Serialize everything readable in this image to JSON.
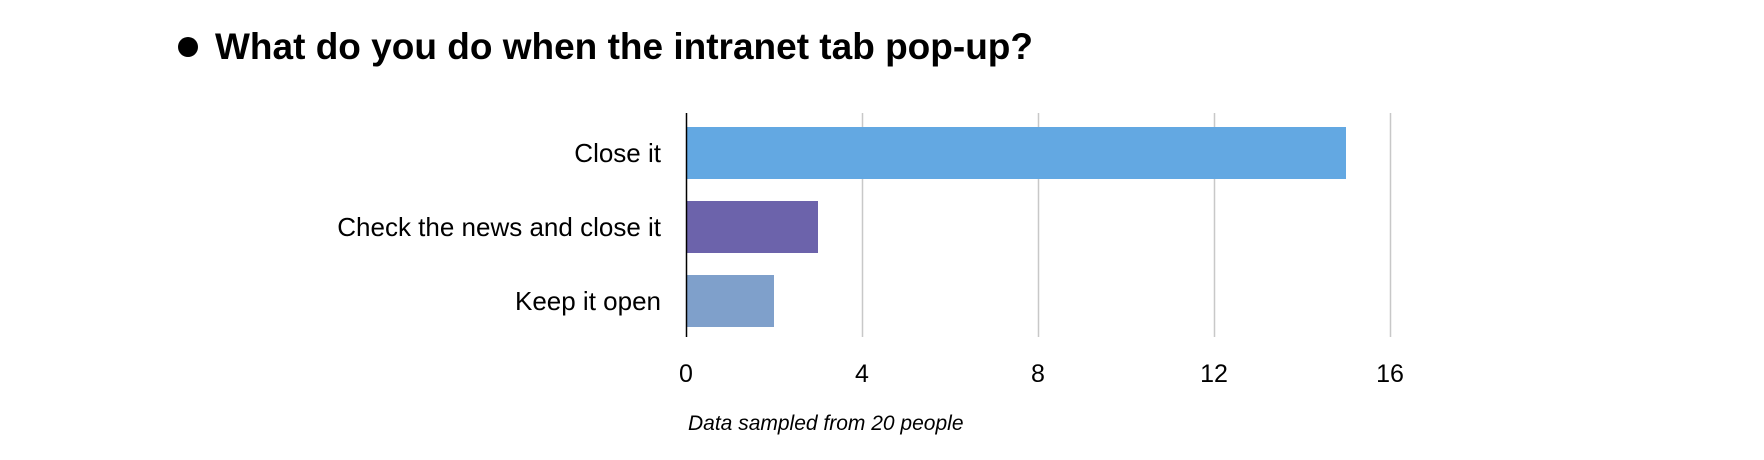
{
  "slide": {
    "title": "What do you do when the intranet tab pop-up?"
  },
  "chart_data": {
    "type": "bar",
    "orientation": "horizontal",
    "categories": [
      "Close it",
      "Check the news and close it",
      "Keep it open"
    ],
    "values": [
      15,
      3,
      2
    ],
    "colors": [
      "#63a8e2",
      "#6c63ab",
      "#7fa0cb"
    ],
    "xlim": [
      0,
      16
    ],
    "xticks": [
      0,
      4,
      8,
      12,
      16
    ],
    "title": "",
    "xlabel": "",
    "ylabel": "",
    "grid": "vertical",
    "note": "Data sampled from 20 people"
  }
}
